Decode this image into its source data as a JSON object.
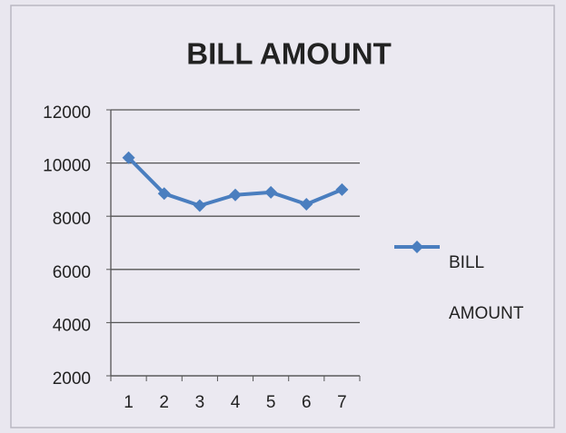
{
  "chart_data": {
    "type": "line",
    "title": "BILL AMOUNT",
    "categories": [
      "1",
      "2",
      "3",
      "4",
      "5",
      "6",
      "7"
    ],
    "series": [
      {
        "name": "BILL AMOUNT",
        "color": "#4a7ebf",
        "values": [
          10200,
          8850,
          8400,
          8800,
          8900,
          8450,
          9000
        ]
      }
    ],
    "ylim": [
      2000,
      12000
    ],
    "yticks": [
      2000,
      4000,
      6000,
      8000,
      10000,
      12000
    ],
    "grid": true,
    "legend": "right"
  }
}
